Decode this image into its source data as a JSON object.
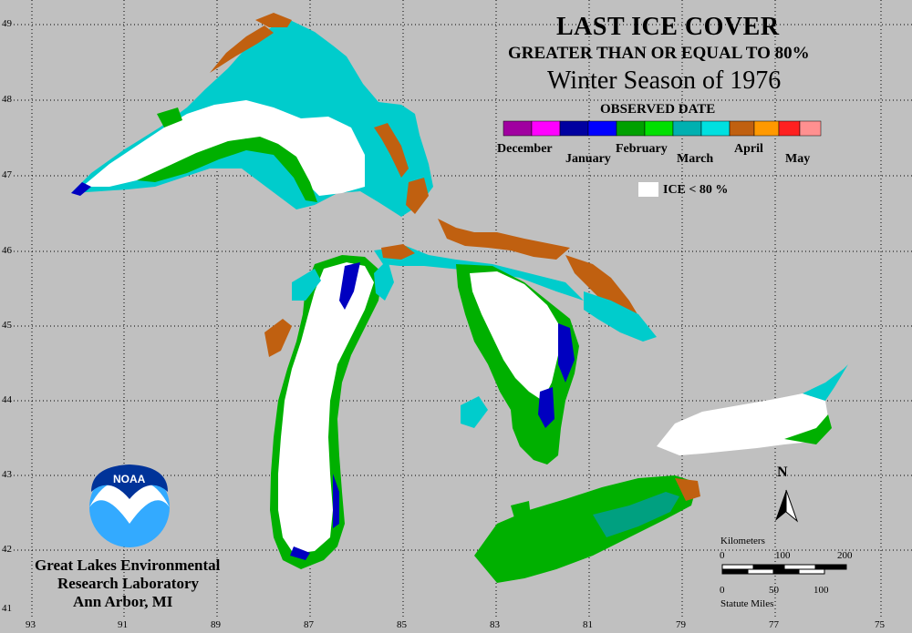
{
  "title": "LAST ICE COVER",
  "subtitle": "GREATER THAN OR EQUAL TO 80%",
  "season": "Winter Season of 1976",
  "legend": {
    "heading": "OBSERVED DATE",
    "months": [
      "December",
      "January",
      "February",
      "March",
      "April",
      "May"
    ],
    "colors": [
      "#a000a0",
      "#ff00ff",
      "#0000a0",
      "#0000ff",
      "#00a000",
      "#00e000",
      "#00b0b0",
      "#00e0e0",
      "#c06010",
      "#ff9900",
      "#ff2020",
      "#ff9090"
    ],
    "ice_label": "ICE < 80 %"
  },
  "grid": {
    "latitudes": [
      "49",
      "48",
      "47",
      "46",
      "45",
      "44",
      "43",
      "42",
      "41"
    ],
    "longitudes": [
      "93",
      "91",
      "89",
      "87",
      "85",
      "83",
      "81",
      "79",
      "77",
      "75"
    ]
  },
  "agency": {
    "logo_text": "NOAA",
    "line1": "Great Lakes Environmental",
    "line2": "Research Laboratory",
    "line3": "Ann Arbor, MI"
  },
  "north_label": "N",
  "scale": {
    "km_label": "Kilometers",
    "km_ticks": [
      "0",
      "100",
      "200"
    ],
    "mi_ticks": [
      "0",
      "50",
      "100"
    ],
    "mi_label": "Statute Miles"
  },
  "colors": {
    "background": "#c0c0c0",
    "ice_below_80": "#ffffff",
    "march": "#00d0d0",
    "february": "#00b000",
    "january": "#0000c0",
    "april": "#c06010"
  }
}
